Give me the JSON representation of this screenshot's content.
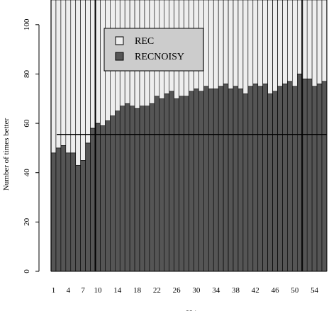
{
  "chart_data": {
    "type": "bar",
    "stacked": true,
    "xlabel": "H i",
    "ylabel": "Number of times better",
    "ylim": [
      0,
      110
    ],
    "yticks": [
      0,
      20,
      40,
      60,
      80,
      100
    ],
    "xtick_labels": [
      "1",
      "4",
      "7",
      "10",
      "14",
      "18",
      "22",
      "26",
      "30",
      "34",
      "38",
      "42",
      "46",
      "50",
      "54"
    ],
    "categories": [
      1,
      2,
      3,
      4,
      5,
      6,
      7,
      8,
      9,
      10,
      11,
      12,
      13,
      14,
      15,
      16,
      17,
      18,
      19,
      20,
      21,
      22,
      23,
      24,
      25,
      26,
      27,
      28,
      29,
      30,
      31,
      32,
      33,
      34,
      35,
      36,
      37,
      38,
      39,
      40,
      41,
      42,
      43,
      44,
      45,
      46,
      47,
      48,
      49,
      50,
      51,
      52,
      53,
      54,
      55,
      56
    ],
    "total": 110,
    "series": [
      {
        "name": "RECNOISY",
        "color": "#555555",
        "values": [
          48,
          50,
          51,
          48,
          48,
          43,
          45,
          52,
          58,
          60,
          59,
          61,
          63,
          65,
          67,
          68,
          67,
          66,
          67,
          67,
          68,
          71,
          70,
          72,
          73,
          70,
          71,
          71,
          73,
          74,
          73,
          75,
          74,
          74,
          75,
          76,
          74,
          75,
          74,
          72,
          75,
          76,
          75,
          76,
          72,
          73,
          75,
          76,
          77,
          75,
          80,
          78,
          78,
          75,
          76,
          77
        ]
      },
      {
        "name": "REC",
        "color": "#eeeeee",
        "values": [
          62,
          60,
          59,
          62,
          62,
          67,
          65,
          58,
          52,
          50,
          51,
          49,
          47,
          45,
          43,
          42,
          43,
          44,
          43,
          43,
          42,
          39,
          40,
          38,
          37,
          40,
          39,
          39,
          37,
          36,
          37,
          35,
          36,
          36,
          35,
          34,
          36,
          35,
          36,
          38,
          35,
          34,
          35,
          34,
          38,
          37,
          35,
          34,
          33,
          35,
          30,
          32,
          32,
          35,
          34,
          33
        ]
      }
    ],
    "reference_line": 55.5,
    "thick_separators_after": [
      9,
      51
    ],
    "legend": {
      "position": "top-center",
      "entries": [
        "REC",
        "RECNOISY"
      ]
    }
  }
}
